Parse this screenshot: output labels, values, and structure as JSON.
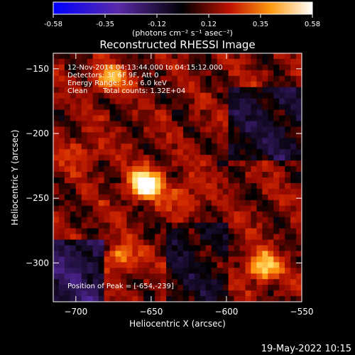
{
  "colorbar": {
    "ticks": [
      "-0.58",
      "-0.35",
      "-0.12",
      "0.12",
      "0.35",
      "0.58"
    ],
    "unit_label": "(photons cm⁻² s⁻¹ asec⁻²)",
    "range": [
      -0.58,
      0.58
    ]
  },
  "annotations": {
    "time_range": "12-Nov-2014 04:13:44.000 to 04:15:12.000",
    "detectors": "Detectors: 3F 6F 9F, Att 0",
    "energy": "Energy Range: 3.0 - 6.0 keV",
    "method": "Clean",
    "counts": "Total counts: 1.32E+04",
    "peak": "Position of Peak = [-654,-239]"
  },
  "footer": {
    "date": "19-May-2022 10:15"
  },
  "colors": {
    "background": "#000000",
    "text": "#ffffff"
  },
  "chart_data": {
    "type": "heatmap",
    "title": "Reconstructed RHESSI Image",
    "xlabel": "Heliocentric X (arcsec)",
    "ylabel": "Heliocentric Y (arcsec)",
    "xlim": [
      -715,
      -550
    ],
    "ylim": [
      -330,
      -138
    ],
    "xticks": [
      -700,
      -650,
      -600,
      -550
    ],
    "yticks": [
      -150,
      -200,
      -250,
      -300
    ],
    "colormap": "hot-diverging (blue-purple-black-red-yellow-white)",
    "sources": [
      {
        "x": -654,
        "y": -239,
        "intensity": 0.58,
        "label": "peak"
      },
      {
        "x": -576,
        "y": -303,
        "intensity": 0.42
      },
      {
        "x": -678,
        "y": -158,
        "intensity": 0.3
      },
      {
        "x": -670,
        "y": -296,
        "intensity": 0.25
      },
      {
        "x": -628,
        "y": -250,
        "intensity": 0.18
      },
      {
        "x": -695,
        "y": -215,
        "intensity": 0.15
      }
    ]
  }
}
